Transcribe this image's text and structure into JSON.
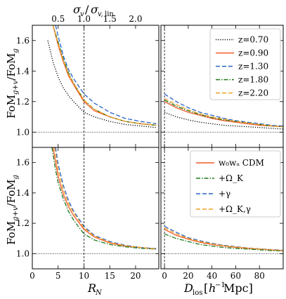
{
  "chart_data": [
    {
      "id": "top_left",
      "type": "line",
      "x_axis": {
        "ticks": [
          0,
          5,
          10,
          15,
          20
        ],
        "tick_labels": [
          "",
          "",
          "",
          "",
          ""
        ],
        "xlim": [
          0,
          24.5
        ]
      },
      "y_axis": {
        "ticks": [
          1.0,
          1.2,
          1.4,
          1.6
        ],
        "tick_labels": [
          "1.0",
          "1.2",
          "1.4",
          "1.6"
        ],
        "ylim": [
          0.9,
          1.7
        ]
      },
      "ylabel": "FoM_{g+v}/FoM_g",
      "top_axis": {
        "xlabel": "σ_v/σ_{v,lin}",
        "ticks": [
          5,
          10,
          15,
          20
        ],
        "tick_labels": [
          "0.5",
          "1.0",
          "1.5",
          "2.0"
        ]
      },
      "reference_lines": {
        "hline_y": 1.0,
        "vline_x": 10
      },
      "series": [
        {
          "name": "z=0.70",
          "color": "#000000",
          "style": "dotted",
          "x": [
            3,
            4,
            5,
            6,
            7,
            8,
            10,
            12,
            15,
            18,
            21,
            24
          ],
          "y": [
            1.6,
            1.46,
            1.36,
            1.29,
            1.24,
            1.2,
            1.13,
            1.1,
            1.07,
            1.05,
            1.04,
            1.03
          ]
        },
        {
          "name": "z=0.90",
          "color": "#f05a28",
          "style": "solid",
          "x": [
            4,
            5,
            6,
            7,
            8,
            10,
            12,
            15,
            18,
            21,
            24
          ],
          "y": [
            1.7,
            1.57,
            1.46,
            1.37,
            1.31,
            1.2,
            1.14,
            1.1,
            1.07,
            1.055,
            1.045
          ]
        },
        {
          "name": "z=1.30",
          "color": "#2864c8",
          "style": "dashed",
          "x": [
            4.5,
            5,
            6,
            7,
            8,
            10,
            12,
            15,
            18,
            21,
            24
          ],
          "y": [
            1.7,
            1.63,
            1.5,
            1.41,
            1.35,
            1.25,
            1.19,
            1.13,
            1.09,
            1.07,
            1.055
          ]
        },
        {
          "name": "z=1.80",
          "color": "#1f7a1f",
          "style": "dashdot",
          "x": [
            4,
            5,
            6,
            7,
            8,
            10,
            12,
            15,
            18,
            21,
            24
          ],
          "y": [
            1.7,
            1.59,
            1.48,
            1.39,
            1.32,
            1.21,
            1.15,
            1.1,
            1.07,
            1.055,
            1.045
          ]
        },
        {
          "name": "z=2.20",
          "color": "#f0a020",
          "style": "dashed",
          "x": [
            4,
            5,
            6,
            7,
            8,
            10,
            12,
            15,
            18,
            21,
            24
          ],
          "y": [
            1.7,
            1.58,
            1.47,
            1.38,
            1.32,
            1.21,
            1.15,
            1.1,
            1.07,
            1.055,
            1.045
          ]
        }
      ]
    },
    {
      "id": "top_right",
      "type": "line",
      "x_axis": {
        "ticks": [
          0,
          20,
          40,
          60,
          80
        ],
        "tick_labels": [
          "",
          "",
          "",
          "",
          ""
        ],
        "xlim": [
          -3,
          100
        ]
      },
      "y_axis": {
        "ticks": [
          1.0,
          1.2,
          1.4,
          1.6
        ],
        "tick_labels": [
          "",
          "",
          "",
          ""
        ],
        "ylim": [
          0.9,
          1.7
        ]
      },
      "reference_lines": {
        "hline_y": 1.0,
        "vline_x": 0
      },
      "legend": {
        "placement": "upper right",
        "entries": [
          {
            "label": "z=0.70",
            "color": "#000000",
            "style": "dotted"
          },
          {
            "label": "z=0.90",
            "color": "#f05a28",
            "style": "solid"
          },
          {
            "label": "z=1.30",
            "color": "#2864c8",
            "style": "dashed"
          },
          {
            "label": "z=1.80",
            "color": "#1f7a1f",
            "style": "dashdot"
          },
          {
            "label": "z=2.20",
            "color": "#f0a020",
            "style": "dashed"
          }
        ]
      },
      "series": [
        {
          "name": "z=0.70",
          "color": "#000000",
          "style": "dotted",
          "x": [
            0,
            10,
            20,
            30,
            40,
            50,
            60,
            70,
            80,
            90,
            100
          ],
          "y": [
            1.13,
            1.1,
            1.08,
            1.065,
            1.055,
            1.045,
            1.04,
            1.035,
            1.03,
            1.025,
            1.02
          ]
        },
        {
          "name": "z=0.90",
          "color": "#f05a28",
          "style": "solid",
          "x": [
            0,
            10,
            20,
            30,
            40,
            50,
            60,
            70,
            80,
            90,
            100
          ],
          "y": [
            1.2,
            1.16,
            1.13,
            1.11,
            1.09,
            1.075,
            1.065,
            1.055,
            1.045,
            1.04,
            1.035
          ]
        },
        {
          "name": "z=1.30",
          "color": "#2864c8",
          "style": "dashed",
          "x": [
            0,
            10,
            20,
            30,
            40,
            50,
            60,
            70,
            80,
            90,
            100
          ],
          "y": [
            1.25,
            1.2,
            1.16,
            1.13,
            1.11,
            1.09,
            1.075,
            1.065,
            1.055,
            1.045,
            1.04
          ]
        },
        {
          "name": "z=1.80",
          "color": "#1f7a1f",
          "style": "dashdot",
          "x": [
            0,
            10,
            20,
            30,
            40,
            50,
            60,
            70,
            80,
            90,
            100
          ],
          "y": [
            1.21,
            1.17,
            1.14,
            1.115,
            1.095,
            1.08,
            1.07,
            1.06,
            1.05,
            1.04,
            1.035
          ]
        },
        {
          "name": "z=2.20",
          "color": "#f0a020",
          "style": "dashed",
          "x": [
            0,
            10,
            20,
            30,
            40,
            50,
            60,
            70,
            80,
            90,
            100
          ],
          "y": [
            1.22,
            1.18,
            1.145,
            1.12,
            1.1,
            1.085,
            1.07,
            1.06,
            1.05,
            1.042,
            1.035
          ]
        }
      ]
    },
    {
      "id": "bottom_left",
      "type": "line",
      "x_axis": {
        "ticks": [
          0,
          5,
          10,
          15,
          20
        ],
        "tick_labels": [
          "0",
          "5",
          "10",
          "15",
          "20"
        ],
        "xlim": [
          0,
          24.5
        ],
        "xlabel": "R_N"
      },
      "y_axis": {
        "ticks": [
          1.0,
          1.2,
          1.4,
          1.6
        ],
        "tick_labels": [
          "1.0",
          "1.2",
          "1.4",
          "1.6"
        ],
        "ylim": [
          0.9,
          1.7
        ]
      },
      "ylabel": "FoM_{g+v}/FoM_g",
      "reference_lines": {
        "hline_y": 1.0,
        "vline_x": 10
      },
      "series": [
        {
          "name": "w0wa CDM",
          "color": "#f05a28",
          "style": "solid",
          "x": [
            4,
            5,
            6,
            7,
            8,
            10,
            12,
            15,
            18,
            21,
            24
          ],
          "y": [
            1.7,
            1.51,
            1.39,
            1.31,
            1.25,
            1.16,
            1.11,
            1.07,
            1.05,
            1.04,
            1.03
          ]
        },
        {
          "name": "+Ω_K",
          "color": "#1f7a1f",
          "style": "dashdot",
          "x": [
            3.8,
            4.5,
            5,
            6,
            7,
            8,
            10,
            12,
            15,
            18,
            21,
            24
          ],
          "y": [
            1.7,
            1.55,
            1.47,
            1.36,
            1.28,
            1.22,
            1.13,
            1.09,
            1.06,
            1.045,
            1.035,
            1.03
          ]
        },
        {
          "name": "+γ",
          "color": "#2864c8",
          "style": "dashed",
          "x": [
            4.5,
            5,
            6,
            7,
            8,
            10,
            12,
            15,
            18,
            21,
            24
          ],
          "y": [
            1.7,
            1.59,
            1.45,
            1.35,
            1.28,
            1.18,
            1.12,
            1.08,
            1.055,
            1.04,
            1.033
          ]
        },
        {
          "name": "+Ω_K,γ",
          "color": "#f0a020",
          "style": "dashed",
          "x": [
            4.3,
            5,
            6,
            7,
            8,
            10,
            12,
            15,
            18,
            21,
            24
          ],
          "y": [
            1.7,
            1.55,
            1.42,
            1.33,
            1.27,
            1.17,
            1.115,
            1.075,
            1.052,
            1.04,
            1.032
          ]
        }
      ]
    },
    {
      "id": "bottom_right",
      "type": "line",
      "x_axis": {
        "ticks": [
          0,
          20,
          40,
          60,
          80
        ],
        "tick_labels": [
          "0",
          "20",
          "40",
          "60",
          "80"
        ],
        "xlim": [
          -3,
          100
        ],
        "xlabel": "D_los [h^-1 Mpc]"
      },
      "y_axis": {
        "ticks": [
          1.0,
          1.2,
          1.4,
          1.6
        ],
        "tick_labels": [
          "",
          "",
          "",
          ""
        ],
        "ylim": [
          0.9,
          1.7
        ]
      },
      "reference_lines": {
        "hline_y": 1.0,
        "vline_x": 0
      },
      "legend": {
        "placement": "upper right",
        "entries": [
          {
            "label": "w0wa CDM",
            "color": "#f05a28",
            "style": "solid"
          },
          {
            "label": "+Ω_K",
            "color": "#1f7a1f",
            "style": "dashdot"
          },
          {
            "label": "+γ",
            "color": "#2864c8",
            "style": "dashed"
          },
          {
            "label": "+Ω_K,γ",
            "color": "#f0a020",
            "style": "dashed"
          }
        ]
      },
      "series": [
        {
          "name": "w0wa CDM",
          "color": "#f05a28",
          "style": "solid",
          "x": [
            0,
            10,
            20,
            30,
            40,
            50,
            60,
            70,
            80,
            90,
            100
          ],
          "y": [
            1.16,
            1.12,
            1.095,
            1.075,
            1.06,
            1.05,
            1.042,
            1.035,
            1.03,
            1.025,
            1.02
          ]
        },
        {
          "name": "+Ω_K",
          "color": "#1f7a1f",
          "style": "dashdot",
          "x": [
            0,
            10,
            20,
            30,
            40,
            50,
            60,
            70,
            80,
            90,
            100
          ],
          "y": [
            1.13,
            1.1,
            1.08,
            1.06,
            1.05,
            1.04,
            1.035,
            1.03,
            1.025,
            1.02,
            1.018
          ]
        },
        {
          "name": "+γ",
          "color": "#2864c8",
          "style": "dashed",
          "x": [
            0,
            10,
            20,
            30,
            40,
            50,
            60,
            70,
            80,
            90,
            100
          ],
          "y": [
            1.18,
            1.14,
            1.105,
            1.085,
            1.068,
            1.055,
            1.046,
            1.038,
            1.032,
            1.027,
            1.022
          ]
        },
        {
          "name": "+Ω_K,γ",
          "color": "#f0a020",
          "style": "dashed",
          "x": [
            0,
            10,
            20,
            30,
            40,
            50,
            60,
            70,
            80,
            90,
            100
          ],
          "y": [
            1.17,
            1.13,
            1.1,
            1.08,
            1.064,
            1.052,
            1.044,
            1.037,
            1.031,
            1.026,
            1.021
          ]
        }
      ]
    }
  ]
}
